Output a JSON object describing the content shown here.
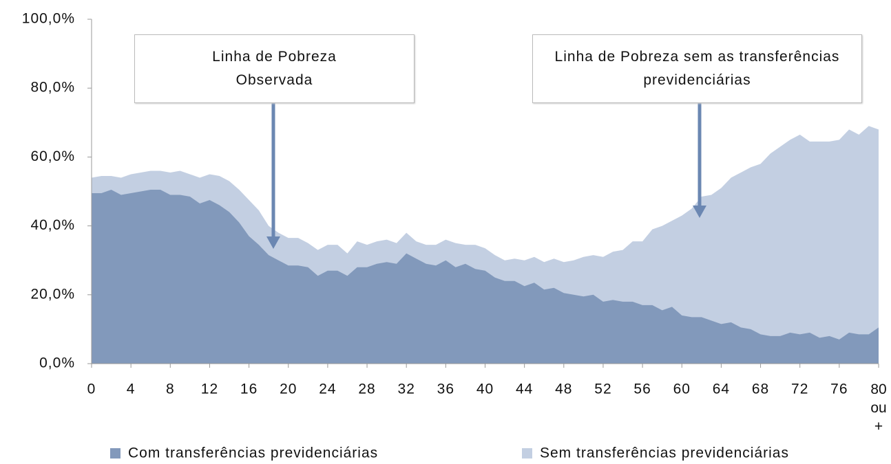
{
  "chart_data": {
    "type": "area",
    "x": [
      0,
      1,
      2,
      3,
      4,
      5,
      6,
      7,
      8,
      9,
      10,
      11,
      12,
      13,
      14,
      15,
      16,
      17,
      18,
      19,
      20,
      21,
      22,
      23,
      24,
      25,
      26,
      27,
      28,
      29,
      30,
      31,
      32,
      33,
      34,
      35,
      36,
      37,
      38,
      39,
      40,
      41,
      42,
      43,
      44,
      45,
      46,
      47,
      48,
      49,
      50,
      51,
      52,
      53,
      54,
      55,
      56,
      57,
      58,
      59,
      60,
      61,
      62,
      63,
      64,
      65,
      66,
      67,
      68,
      69,
      70,
      71,
      72,
      73,
      74,
      75,
      76,
      77,
      78,
      79,
      80
    ],
    "series": [
      {
        "name": "Com transferências previdenciárias",
        "color": "#8299bb",
        "values": [
          49.5,
          49.5,
          50.5,
          49,
          49.5,
          50,
          50.5,
          50.5,
          49,
          49,
          48.5,
          46.5,
          47.5,
          46,
          44,
          41,
          37,
          34.5,
          31.5,
          30,
          28.5,
          28.5,
          28,
          25.5,
          27,
          27,
          25.5,
          28,
          28,
          29,
          29.5,
          29,
          32,
          30.5,
          29,
          28.5,
          30,
          28,
          29,
          27.5,
          27,
          25,
          24,
          24,
          22.5,
          23.5,
          21.5,
          22,
          20.5,
          20,
          19.5,
          20,
          18,
          18.5,
          18,
          18,
          17,
          17,
          15.5,
          16.5,
          14,
          13.5,
          13.5,
          12.5,
          11.5,
          12,
          10.5,
          10,
          8.5,
          8,
          8,
          9,
          8.5,
          9,
          7.5,
          8,
          7,
          9,
          8.5,
          8.5,
          10.5
        ]
      },
      {
        "name": "Sem transferências previdenciárias",
        "color": "#c3cfe2",
        "values": [
          54,
          54.5,
          54.5,
          54,
          55,
          55.5,
          56,
          56,
          55.5,
          56,
          55,
          54,
          55,
          54.5,
          53,
          50.5,
          47.5,
          44.5,
          40,
          38,
          36.5,
          36.5,
          35,
          33,
          34.5,
          34.5,
          32,
          35.5,
          34.5,
          35.5,
          36,
          35,
          38,
          35.5,
          34.5,
          34.5,
          36,
          35,
          34.5,
          34.5,
          33.5,
          31.5,
          30,
          30.5,
          30,
          31,
          29.5,
          30.5,
          29.5,
          30,
          31,
          31.5,
          31,
          32.5,
          33,
          35.5,
          35.5,
          39,
          40,
          41.5,
          43,
          45,
          48.5,
          49,
          51,
          54,
          55.5,
          57,
          58,
          61,
          63,
          65,
          66.5,
          64.5,
          64.5,
          64.5,
          65,
          68,
          66.5,
          69,
          68
        ]
      }
    ],
    "xlim": [
      0,
      80
    ],
    "xticks": [
      0,
      4,
      8,
      12,
      16,
      20,
      24,
      28,
      32,
      36,
      40,
      44,
      48,
      52,
      56,
      60,
      64,
      68,
      72,
      76,
      {
        "value": 80,
        "label": "80 ou +"
      }
    ],
    "ylim": [
      0,
      100
    ],
    "yticks": [
      {
        "value": 0,
        "label": "0,0%"
      },
      {
        "value": 20,
        "label": "20,0%"
      },
      {
        "value": 40,
        "label": "40,0%"
      },
      {
        "value": 60,
        "label": "60,0%"
      },
      {
        "value": 80,
        "label": "80,0%"
      },
      {
        "value": 100,
        "label": "100,0%"
      }
    ],
    "annotations": [
      {
        "text": "Linha de Pobreza Observada"
      },
      {
        "text": "Linha de Pobreza sem as transferências previdenciárias"
      }
    ]
  }
}
